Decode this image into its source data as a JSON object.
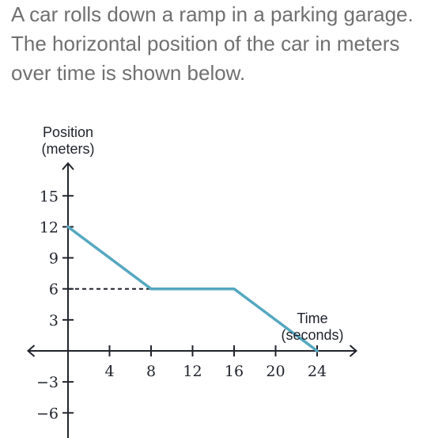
{
  "question": {
    "text": "A car rolls down a ramp in a parking garage. The horizontal position of the car in meters over time is shown below."
  },
  "colors": {
    "line": "#55a8c0",
    "axis": "#21242c",
    "dashed": "#21242c",
    "question_text": "#707070"
  },
  "chart_data": {
    "type": "line",
    "title": "",
    "xlabel": "Time (seconds)",
    "ylabel": "Position (meters)",
    "ylabel_lines": [
      "Position",
      "(meters)"
    ],
    "xlabel_lines": [
      "Time",
      "(seconds)"
    ],
    "x_ticks": [
      4,
      8,
      12,
      16,
      20,
      24
    ],
    "x_tick_labels": [
      "4",
      "8",
      "12",
      "16",
      "20",
      "24"
    ],
    "y_ticks": [
      15,
      12,
      9,
      6,
      3,
      -3,
      -6
    ],
    "y_tick_labels": [
      "15",
      "12",
      "9",
      "6",
      "3",
      "−3",
      "−6"
    ],
    "xlim": [
      -4,
      28
    ],
    "ylim": [
      -9,
      18
    ],
    "grid": false,
    "series": [
      {
        "x": [
          0,
          8,
          16,
          24
        ],
        "y": [
          12,
          6,
          6,
          0
        ]
      }
    ],
    "reference_lines": [
      {
        "style": "dashed",
        "x": [
          0,
          8
        ],
        "y": [
          6,
          6
        ]
      }
    ]
  }
}
